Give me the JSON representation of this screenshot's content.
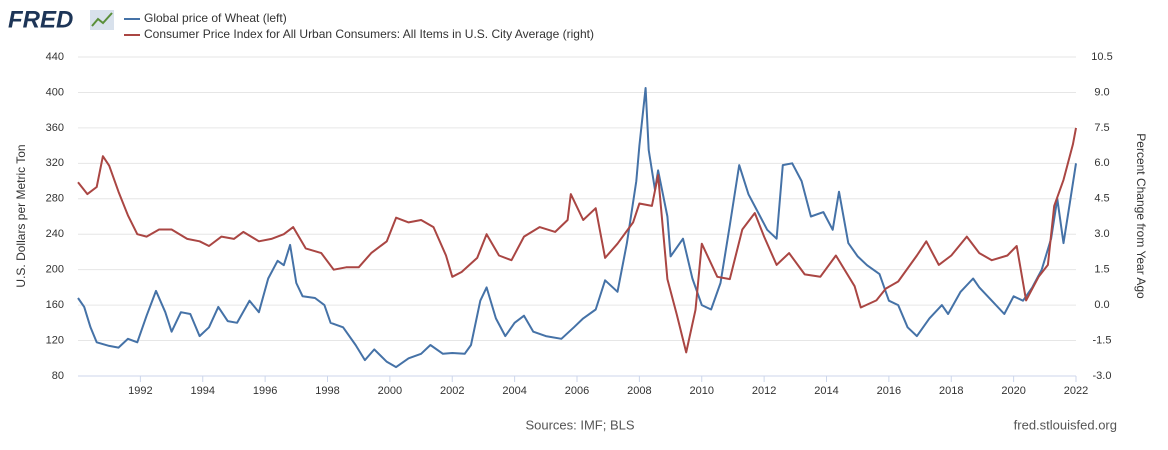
{
  "logo": "FRED",
  "sources": "Sources: IMF; BLS",
  "site": "fred.stlouisfed.org",
  "chart_data": {
    "type": "line",
    "ylabel": "U.S. Dollars per Metric Ton",
    "y2label": "Percent Change from Year Ago",
    "xlim": [
      1990,
      2022
    ],
    "xticks": [
      1992,
      1994,
      1996,
      1998,
      2000,
      2002,
      2004,
      2006,
      2008,
      2010,
      2012,
      2014,
      2016,
      2018,
      2020,
      2022
    ],
    "ylim": [
      80,
      440
    ],
    "yticks": [
      80,
      120,
      160,
      200,
      240,
      280,
      320,
      360,
      400,
      440
    ],
    "y2lim": [
      -3,
      10.5
    ],
    "y2ticks": [
      {
        "value": -3,
        "label": "-3.0"
      },
      -1.5,
      {
        "value": 0,
        "label": "0.0"
      },
      1.5,
      {
        "value": 3,
        "label": "3.0"
      },
      4.5,
      {
        "value": 6,
        "label": "6.0"
      },
      7.5,
      {
        "value": 9,
        "label": "9.0"
      },
      10.5
    ],
    "grid": true,
    "series": [
      {
        "name": "Global price of Wheat (left)",
        "color": "#4572a7",
        "x": [
          1990.0,
          1990.2,
          1990.4,
          1990.6,
          1991.0,
          1991.3,
          1991.6,
          1991.9,
          1992.2,
          1992.5,
          1992.8,
          1993.0,
          1993.3,
          1993.6,
          1993.9,
          1994.2,
          1994.5,
          1994.8,
          1995.1,
          1995.5,
          1995.8,
          1996.1,
          1996.4,
          1996.6,
          1996.8,
          1997.0,
          1997.2,
          1997.6,
          1997.9,
          1998.1,
          1998.5,
          1998.9,
          1999.2,
          1999.5,
          1999.9,
          2000.2,
          2000.6,
          2001.0,
          2001.3,
          2001.7,
          2002.0,
          2002.4,
          2002.6,
          2002.9,
          2003.1,
          2003.4,
          2003.7,
          2004.0,
          2004.3,
          2004.6,
          2005.0,
          2005.5,
          2005.9,
          2006.2,
          2006.6,
          2006.9,
          2007.3,
          2007.6,
          2007.9,
          2008.0,
          2008.2,
          2008.3,
          2008.5,
          2008.6,
          2008.9,
          2009.0,
          2009.4,
          2009.7,
          2010.0,
          2010.3,
          2010.6,
          2010.9,
          2011.2,
          2011.5,
          2011.8,
          2012.1,
          2012.4,
          2012.6,
          2012.9,
          2013.2,
          2013.5,
          2013.9,
          2014.2,
          2014.4,
          2014.7,
          2015.0,
          2015.3,
          2015.7,
          2016.0,
          2016.3,
          2016.6,
          2016.9,
          2017.3,
          2017.7,
          2017.9,
          2018.3,
          2018.7,
          2018.9,
          2019.3,
          2019.7,
          2020.0,
          2020.3,
          2020.6,
          2020.9,
          2021.2,
          2021.4,
          2021.6,
          2021.8,
          2022.0
        ],
        "values": [
          168,
          158,
          135,
          118,
          114,
          112,
          122,
          118,
          148,
          176,
          152,
          130,
          152,
          150,
          125,
          135,
          158,
          142,
          140,
          165,
          152,
          190,
          210,
          205,
          228,
          185,
          170,
          168,
          160,
          140,
          135,
          115,
          98,
          110,
          96,
          90,
          100,
          105,
          115,
          105,
          106,
          105,
          115,
          165,
          180,
          145,
          125,
          140,
          148,
          130,
          125,
          122,
          135,
          145,
          155,
          188,
          175,
          230,
          300,
          340,
          405,
          335,
          290,
          312,
          260,
          215,
          235,
          190,
          160,
          155,
          185,
          250,
          318,
          285,
          265,
          245,
          235,
          318,
          320,
          300,
          260,
          265,
          245,
          288,
          230,
          215,
          205,
          195,
          165,
          160,
          135,
          125,
          145,
          160,
          150,
          175,
          190,
          180,
          165,
          150,
          170,
          165,
          180,
          200,
          235,
          280,
          230,
          275,
          320
        ]
      },
      {
        "name": "Consumer Price Index for All Urban Consumers: All Items in U.S. City Average (right)",
        "color": "#aa4643",
        "axis": "y2",
        "x": [
          1990.0,
          1990.3,
          1990.6,
          1990.8,
          1991.0,
          1991.3,
          1991.6,
          1991.9,
          1992.2,
          1992.6,
          1993.0,
          1993.5,
          1993.9,
          1994.2,
          1994.6,
          1995.0,
          1995.3,
          1995.8,
          1996.2,
          1996.6,
          1996.9,
          1997.3,
          1997.8,
          1998.2,
          1998.6,
          1999.0,
          1999.4,
          1999.9,
          2000.2,
          2000.6,
          2001.0,
          2001.4,
          2001.8,
          2002.0,
          2002.3,
          2002.8,
          2003.1,
          2003.5,
          2003.9,
          2004.3,
          2004.8,
          2005.3,
          2005.7,
          2005.8,
          2006.2,
          2006.6,
          2006.9,
          2007.3,
          2007.8,
          2008.0,
          2008.4,
          2008.6,
          2008.9,
          2009.2,
          2009.5,
          2009.8,
          2010.0,
          2010.5,
          2010.9,
          2011.3,
          2011.7,
          2012.0,
          2012.4,
          2012.8,
          2013.3,
          2013.8,
          2014.3,
          2014.9,
          2015.1,
          2015.6,
          2015.9,
          2016.3,
          2016.9,
          2017.2,
          2017.6,
          2018.0,
          2018.5,
          2018.9,
          2019.3,
          2019.8,
          2020.1,
          2020.4,
          2020.8,
          2021.1,
          2021.3,
          2021.6,
          2021.9,
          2022.0
        ],
        "values": [
          5.2,
          4.7,
          5.0,
          6.3,
          5.9,
          4.8,
          3.8,
          3.0,
          2.9,
          3.2,
          3.2,
          2.8,
          2.7,
          2.5,
          2.9,
          2.8,
          3.1,
          2.7,
          2.8,
          3.0,
          3.3,
          2.4,
          2.2,
          1.5,
          1.6,
          1.6,
          2.2,
          2.7,
          3.7,
          3.5,
          3.6,
          3.3,
          2.1,
          1.2,
          1.4,
          2.0,
          3.0,
          2.1,
          1.9,
          2.9,
          3.3,
          3.1,
          3.6,
          4.7,
          3.6,
          4.1,
          2.0,
          2.6,
          3.5,
          4.3,
          4.2,
          5.5,
          1.1,
          -0.4,
          -2.0,
          -0.2,
          2.6,
          1.2,
          1.1,
          3.2,
          3.9,
          2.9,
          1.7,
          2.2,
          1.3,
          1.2,
          2.1,
          0.8,
          -0.1,
          0.2,
          0.7,
          1.0,
          2.1,
          2.7,
          1.7,
          2.1,
          2.9,
          2.2,
          1.9,
          2.1,
          2.5,
          0.2,
          1.2,
          1.7,
          4.2,
          5.3,
          6.8,
          7.5
        ]
      }
    ]
  }
}
